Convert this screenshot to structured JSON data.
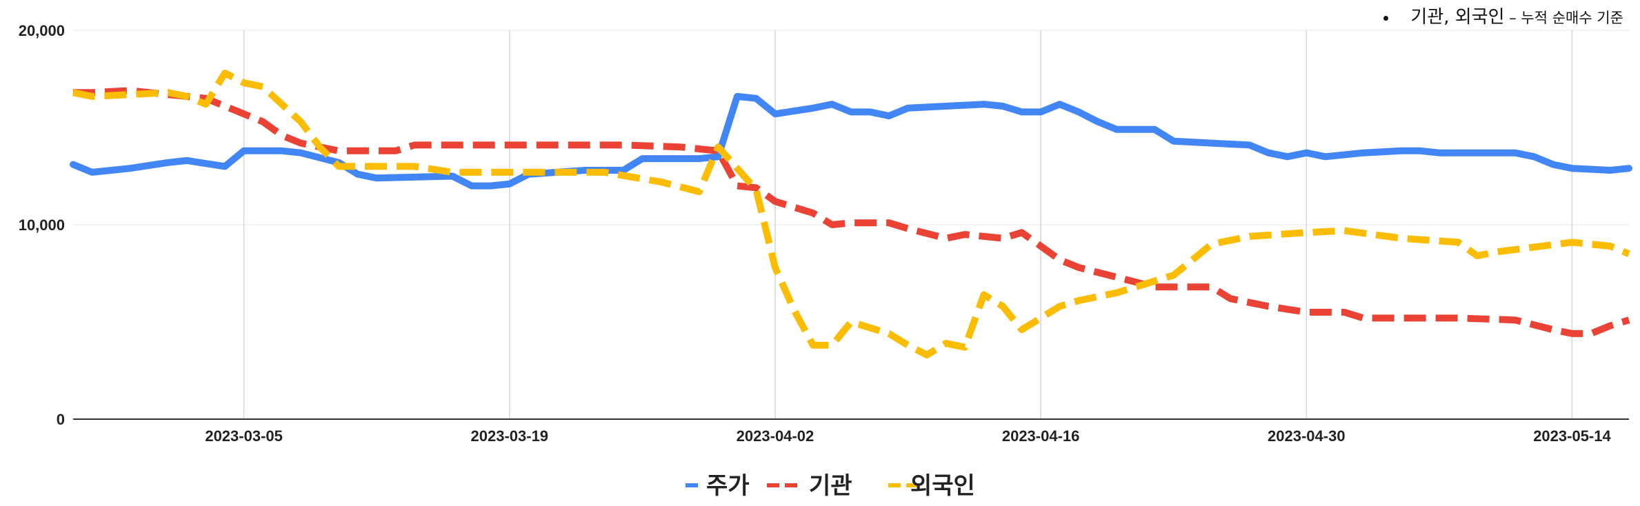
{
  "note": {
    "main": "기관, 외국인",
    "sub": " – 누적 순매수 기준"
  },
  "chart_data": {
    "type": "line",
    "title": "",
    "xlabel": "",
    "ylabel": "",
    "ylim": [
      0,
      20000
    ],
    "yticks": [
      0,
      10000,
      20000
    ],
    "ytick_labels": [
      "0",
      "10,000",
      "20,000"
    ],
    "xlim": [
      "2023-02-24",
      "2023-05-17"
    ],
    "xticks": [
      "2023-03-05",
      "2023-03-19",
      "2023-04-02",
      "2023-04-16",
      "2023-04-30",
      "2023-05-14"
    ],
    "grid": true,
    "legend": "bottom",
    "series": [
      {
        "name": "주가",
        "color": "#4285F4",
        "style": "solid",
        "points": [
          [
            "2023-02-24",
            13100
          ],
          [
            "2023-02-25",
            12700
          ],
          [
            "2023-02-27",
            12900
          ],
          [
            "2023-03-01",
            13200
          ],
          [
            "2023-03-02",
            13300
          ],
          [
            "2023-03-04",
            13000
          ],
          [
            "2023-03-05",
            13800
          ],
          [
            "2023-03-06",
            13800
          ],
          [
            "2023-03-07",
            13800
          ],
          [
            "2023-03-08",
            13700
          ],
          [
            "2023-03-10",
            13200
          ],
          [
            "2023-03-11",
            12600
          ],
          [
            "2023-03-12",
            12400
          ],
          [
            "2023-03-16",
            12500
          ],
          [
            "2023-03-17",
            12000
          ],
          [
            "2023-03-18",
            12000
          ],
          [
            "2023-03-19",
            12100
          ],
          [
            "2023-03-20",
            12600
          ],
          [
            "2023-03-23",
            12800
          ],
          [
            "2023-03-25",
            12800
          ],
          [
            "2023-03-26",
            13400
          ],
          [
            "2023-03-29",
            13400
          ],
          [
            "2023-03-30",
            13500
          ],
          [
            "2023-03-31",
            16600
          ],
          [
            "2023-04-01",
            16500
          ],
          [
            "2023-04-02",
            15700
          ],
          [
            "2023-04-04",
            16000
          ],
          [
            "2023-04-05",
            16200
          ],
          [
            "2023-04-06",
            15800
          ],
          [
            "2023-04-07",
            15800
          ],
          [
            "2023-04-08",
            15600
          ],
          [
            "2023-04-09",
            16000
          ],
          [
            "2023-04-11",
            16100
          ],
          [
            "2023-04-13",
            16200
          ],
          [
            "2023-04-14",
            16100
          ],
          [
            "2023-04-15",
            15800
          ],
          [
            "2023-04-16",
            15800
          ],
          [
            "2023-04-17",
            16200
          ],
          [
            "2023-04-18",
            15800
          ],
          [
            "2023-04-19",
            15300
          ],
          [
            "2023-04-20",
            14900
          ],
          [
            "2023-04-22",
            14900
          ],
          [
            "2023-04-23",
            14300
          ],
          [
            "2023-04-25",
            14200
          ],
          [
            "2023-04-27",
            14100
          ],
          [
            "2023-04-28",
            13700
          ],
          [
            "2023-04-29",
            13500
          ],
          [
            "2023-04-30",
            13700
          ],
          [
            "2023-05-01",
            13500
          ],
          [
            "2023-05-03",
            13700
          ],
          [
            "2023-05-05",
            13800
          ],
          [
            "2023-05-06",
            13800
          ],
          [
            "2023-05-07",
            13700
          ],
          [
            "2023-05-11",
            13700
          ],
          [
            "2023-05-12",
            13500
          ],
          [
            "2023-05-13",
            13100
          ],
          [
            "2023-05-14",
            12900
          ],
          [
            "2023-05-16",
            12800
          ],
          [
            "2023-05-17",
            12900
          ]
        ]
      },
      {
        "name": "기관",
        "color": "#EA4335",
        "style": "dashed",
        "points": [
          [
            "2023-02-24",
            16800
          ],
          [
            "2023-02-25",
            16800
          ],
          [
            "2023-02-27",
            16900
          ],
          [
            "2023-02-28",
            16800
          ],
          [
            "2023-03-01",
            16700
          ],
          [
            "2023-03-03",
            16500
          ],
          [
            "2023-03-05",
            15700
          ],
          [
            "2023-03-06",
            15300
          ],
          [
            "2023-03-07",
            14600
          ],
          [
            "2023-03-08",
            14200
          ],
          [
            "2023-03-10",
            13800
          ],
          [
            "2023-03-12",
            13800
          ],
          [
            "2023-03-13",
            13800
          ],
          [
            "2023-03-14",
            14100
          ],
          [
            "2023-03-17",
            14100
          ],
          [
            "2023-03-19",
            14100
          ],
          [
            "2023-03-25",
            14100
          ],
          [
            "2023-03-28",
            14000
          ],
          [
            "2023-03-30",
            13800
          ],
          [
            "2023-03-31",
            12000
          ],
          [
            "2023-04-01",
            11900
          ],
          [
            "2023-04-02",
            11200
          ],
          [
            "2023-04-04",
            10600
          ],
          [
            "2023-04-05",
            10000
          ],
          [
            "2023-04-06",
            10100
          ],
          [
            "2023-04-08",
            10100
          ],
          [
            "2023-04-09",
            9800
          ],
          [
            "2023-04-11",
            9300
          ],
          [
            "2023-04-12",
            9500
          ],
          [
            "2023-04-14",
            9300
          ],
          [
            "2023-04-15",
            9600
          ],
          [
            "2023-04-16",
            8900
          ],
          [
            "2023-04-17",
            8200
          ],
          [
            "2023-04-18",
            7800
          ],
          [
            "2023-04-20",
            7300
          ],
          [
            "2023-04-22",
            6800
          ],
          [
            "2023-04-24",
            6800
          ],
          [
            "2023-04-25",
            6800
          ],
          [
            "2023-04-26",
            6200
          ],
          [
            "2023-04-28",
            5800
          ],
          [
            "2023-04-30",
            5500
          ],
          [
            "2023-05-02",
            5500
          ],
          [
            "2023-05-03",
            5200
          ],
          [
            "2023-05-05",
            5200
          ],
          [
            "2023-05-08",
            5200
          ],
          [
            "2023-05-11",
            5100
          ],
          [
            "2023-05-13",
            4600
          ],
          [
            "2023-05-14",
            4400
          ],
          [
            "2023-05-15",
            4400
          ],
          [
            "2023-05-16",
            4800
          ],
          [
            "2023-05-17",
            5100
          ]
        ]
      },
      {
        "name": "외국인",
        "color": "#FBBC04",
        "style": "dashed",
        "points": [
          [
            "2023-02-24",
            16800
          ],
          [
            "2023-02-25",
            16600
          ],
          [
            "2023-02-27",
            16700
          ],
          [
            "2023-03-01",
            16800
          ],
          [
            "2023-03-02",
            16600
          ],
          [
            "2023-03-03",
            16200
          ],
          [
            "2023-03-04",
            17800
          ],
          [
            "2023-03-05",
            17300
          ],
          [
            "2023-03-06",
            17100
          ],
          [
            "2023-03-08",
            15300
          ],
          [
            "2023-03-09",
            14000
          ],
          [
            "2023-03-10",
            13000
          ],
          [
            "2023-03-13",
            13000
          ],
          [
            "2023-03-14",
            13000
          ],
          [
            "2023-03-16",
            12700
          ],
          [
            "2023-03-19",
            12700
          ],
          [
            "2023-03-24",
            12700
          ],
          [
            "2023-03-27",
            12200
          ],
          [
            "2023-03-29",
            11700
          ],
          [
            "2023-03-30",
            14000
          ],
          [
            "2023-04-01",
            11800
          ],
          [
            "2023-04-02",
            7800
          ],
          [
            "2023-04-03",
            5600
          ],
          [
            "2023-04-04",
            3800
          ],
          [
            "2023-04-05",
            3800
          ],
          [
            "2023-04-06",
            5000
          ],
          [
            "2023-04-08",
            4400
          ],
          [
            "2023-04-09",
            3800
          ],
          [
            "2023-04-10",
            3300
          ],
          [
            "2023-04-11",
            3900
          ],
          [
            "2023-04-12",
            3700
          ],
          [
            "2023-04-13",
            6400
          ],
          [
            "2023-04-14",
            5800
          ],
          [
            "2023-04-15",
            4600
          ],
          [
            "2023-04-17",
            5800
          ],
          [
            "2023-04-18",
            6100
          ],
          [
            "2023-04-20",
            6500
          ],
          [
            "2023-04-23",
            7400
          ],
          [
            "2023-04-24",
            8200
          ],
          [
            "2023-04-25",
            9000
          ],
          [
            "2023-04-27",
            9400
          ],
          [
            "2023-04-30",
            9600
          ],
          [
            "2023-05-02",
            9700
          ],
          [
            "2023-05-05",
            9300
          ],
          [
            "2023-05-08",
            9100
          ],
          [
            "2023-05-09",
            8400
          ],
          [
            "2023-05-10",
            8600
          ],
          [
            "2023-05-14",
            9100
          ],
          [
            "2023-05-16",
            8900
          ],
          [
            "2023-05-17",
            8500
          ]
        ]
      }
    ]
  }
}
